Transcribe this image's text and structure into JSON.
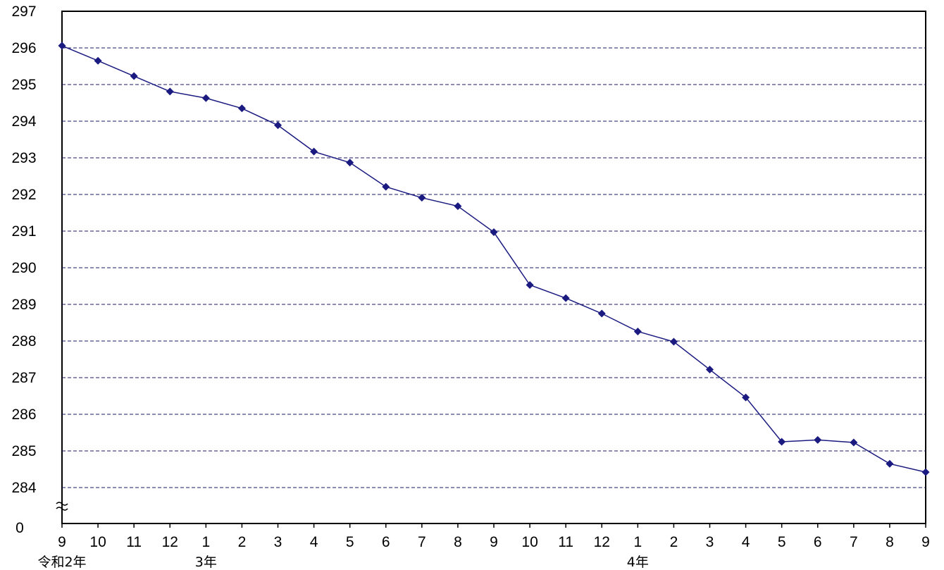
{
  "chart_data": {
    "type": "line",
    "title": "",
    "xlabel": "",
    "ylabel": "",
    "ylim": [
      284,
      297
    ],
    "y_axis_break": true,
    "y_origin_label": "0",
    "y_ticks": [
      "297",
      "296",
      "295",
      "294",
      "293",
      "292",
      "291",
      "290",
      "289",
      "288",
      "287",
      "286",
      "285",
      "284"
    ],
    "grid": "horizontal dashed lines at each y tick",
    "categories": [
      "9",
      "10",
      "11",
      "12",
      "1",
      "2",
      "3",
      "4",
      "5",
      "6",
      "7",
      "8",
      "9",
      "10",
      "11",
      "12",
      "1",
      "2",
      "3",
      "4",
      "5",
      "6",
      "7",
      "8",
      "9"
    ],
    "year_labels": [
      {
        "text": "令和2年",
        "category_index": 0
      },
      {
        "text": "3年",
        "category_index": 4
      },
      {
        "text": "4年",
        "category_index": 16
      }
    ],
    "series": [
      {
        "values": [
          296.06,
          295.65,
          295.23,
          294.81,
          294.63,
          294.35,
          293.89,
          293.17,
          292.87,
          292.21,
          291.91,
          291.68,
          290.97,
          289.53,
          289.17,
          288.75,
          288.26,
          287.98,
          287.22,
          286.46,
          285.25,
          285.3,
          285.23,
          284.65,
          284.42
        ],
        "color": "#1a1a80"
      }
    ]
  }
}
